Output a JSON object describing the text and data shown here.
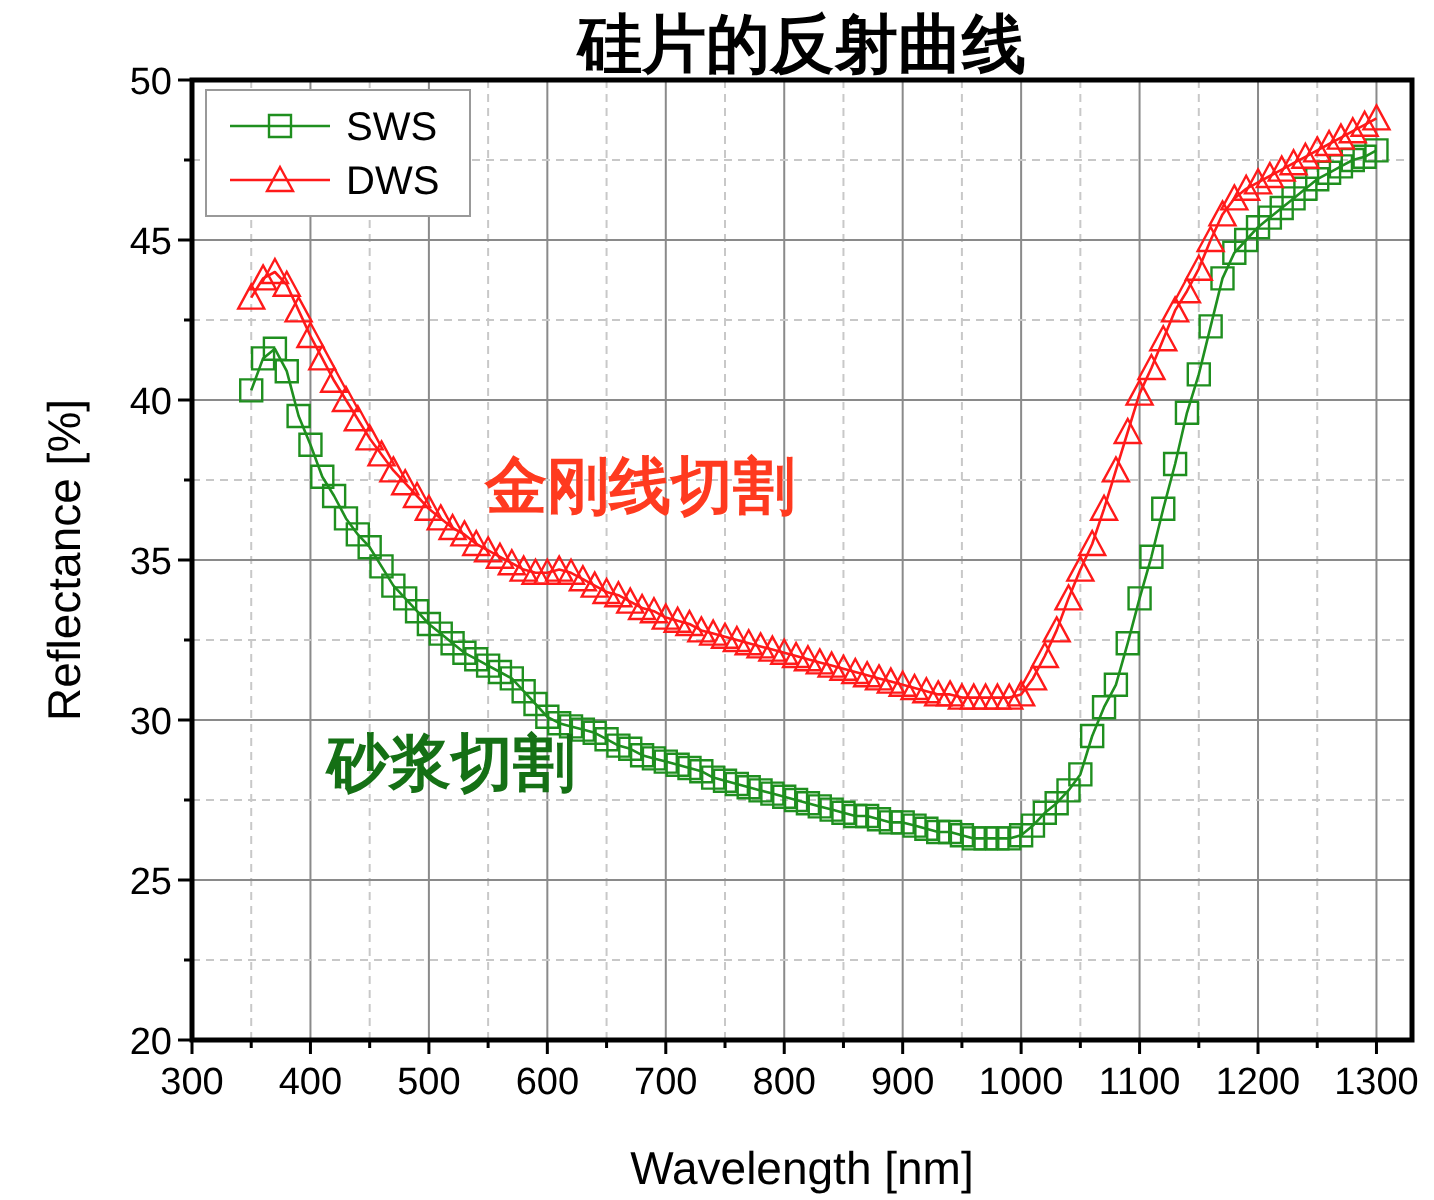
{
  "chart_data": {
    "type": "line",
    "title": "硅片的反射曲线",
    "xlabel": "Wavelength [nm]",
    "ylabel": "Reflectance [%]",
    "x": [
      350,
      360,
      370,
      380,
      390,
      400,
      410,
      420,
      430,
      440,
      450,
      460,
      470,
      480,
      490,
      500,
      510,
      520,
      530,
      540,
      550,
      560,
      570,
      580,
      590,
      600,
      610,
      620,
      630,
      640,
      650,
      660,
      670,
      680,
      690,
      700,
      710,
      720,
      730,
      740,
      750,
      760,
      770,
      780,
      790,
      800,
      810,
      820,
      830,
      840,
      850,
      860,
      870,
      880,
      890,
      900,
      910,
      920,
      930,
      940,
      950,
      960,
      970,
      980,
      990,
      1000,
      1010,
      1020,
      1030,
      1040,
      1050,
      1060,
      1070,
      1080,
      1090,
      1100,
      1110,
      1120,
      1130,
      1140,
      1150,
      1160,
      1170,
      1180,
      1190,
      1200,
      1210,
      1220,
      1230,
      1240,
      1250,
      1260,
      1270,
      1280,
      1290,
      1300
    ],
    "series": [
      {
        "name": "SWS",
        "color": "#1f8f1f",
        "marker": "square",
        "values": [
          40.3,
          41.3,
          41.6,
          40.9,
          39.5,
          38.6,
          37.6,
          37.0,
          36.3,
          35.8,
          35.4,
          34.8,
          34.2,
          33.8,
          33.4,
          33.0,
          32.7,
          32.4,
          32.1,
          31.9,
          31.7,
          31.5,
          31.3,
          30.9,
          30.5,
          30.1,
          29.9,
          29.8,
          29.7,
          29.6,
          29.4,
          29.2,
          29.1,
          28.9,
          28.8,
          28.7,
          28.6,
          28.5,
          28.4,
          28.2,
          28.1,
          28.0,
          27.9,
          27.8,
          27.7,
          27.6,
          27.5,
          27.4,
          27.3,
          27.2,
          27.1,
          27.0,
          27.0,
          26.9,
          26.8,
          26.8,
          26.7,
          26.6,
          26.5,
          26.5,
          26.4,
          26.3,
          26.3,
          26.3,
          26.3,
          26.4,
          26.7,
          27.1,
          27.4,
          27.8,
          28.3,
          29.5,
          30.4,
          31.1,
          32.4,
          33.8,
          35.1,
          36.6,
          38.0,
          39.6,
          40.8,
          42.3,
          43.8,
          44.6,
          45.0,
          45.4,
          45.7,
          46.0,
          46.3,
          46.6,
          46.9,
          47.1,
          47.3,
          47.5,
          47.6,
          47.8
        ]
      },
      {
        "name": "DWS",
        "color": "#ff1a1a",
        "marker": "triangle",
        "values": [
          43.2,
          43.8,
          44.0,
          43.6,
          42.8,
          42.0,
          41.3,
          40.6,
          40.0,
          39.4,
          38.8,
          38.3,
          37.8,
          37.4,
          37.0,
          36.6,
          36.3,
          36.0,
          35.8,
          35.5,
          35.3,
          35.1,
          34.9,
          34.7,
          34.6,
          34.6,
          34.7,
          34.6,
          34.4,
          34.2,
          34.0,
          33.9,
          33.7,
          33.5,
          33.4,
          33.2,
          33.1,
          33.0,
          32.8,
          32.7,
          32.6,
          32.5,
          32.4,
          32.3,
          32.2,
          32.1,
          32.0,
          31.9,
          31.8,
          31.7,
          31.6,
          31.5,
          31.4,
          31.3,
          31.2,
          31.1,
          31.0,
          30.9,
          30.8,
          30.8,
          30.7,
          30.7,
          30.7,
          30.7,
          30.7,
          30.8,
          31.3,
          32.0,
          32.8,
          33.8,
          34.7,
          35.5,
          36.6,
          37.8,
          39.0,
          40.2,
          41.0,
          41.9,
          42.8,
          43.4,
          44.1,
          45.0,
          45.8,
          46.3,
          46.6,
          46.8,
          47.0,
          47.2,
          47.4,
          47.6,
          47.8,
          48.0,
          48.2,
          48.4,
          48.6,
          48.8
        ]
      }
    ],
    "annotations": [
      "砂浆切割",
      "金刚线切割"
    ],
    "xlim": [
      300,
      1330
    ],
    "ylim": [
      20,
      50
    ],
    "xticks": [
      300,
      {
        "value": 350,
        "label": null
      },
      400,
      {
        "value": 450,
        "label": null
      },
      500,
      {
        "value": 550,
        "label": null
      },
      600,
      {
        "value": 650,
        "label": null
      },
      700,
      {
        "value": 750,
        "label": null
      },
      800,
      {
        "value": 850,
        "label": null
      },
      900,
      {
        "value": 950,
        "label": null
      },
      1000,
      {
        "value": 1050,
        "label": null
      },
      1100,
      {
        "value": 1150,
        "label": null
      },
      1200,
      {
        "value": 1250,
        "label": null
      },
      1300
    ],
    "yticks": [
      20,
      {
        "value": 22.5,
        "label": null
      },
      25,
      {
        "value": 27.5,
        "label": null
      },
      30,
      {
        "value": 32.5,
        "label": null
      },
      35,
      {
        "value": 37.5,
        "label": null
      },
      40,
      {
        "value": 42.5,
        "label": null
      },
      45,
      {
        "value": 47.5,
        "label": null
      },
      50
    ],
    "grid": true,
    "legend": "top left",
    "line_style": "solid"
  }
}
